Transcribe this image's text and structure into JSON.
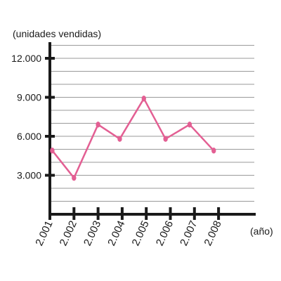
{
  "chart_data": {
    "type": "line",
    "title": "",
    "ylabel": "(unidades vendidas)",
    "xlabel": "(año)",
    "y_ticks": [
      "3.000",
      "6.000",
      "9.000",
      "12.000"
    ],
    "y_tick_values": [
      3000,
      6000,
      9000,
      12000
    ],
    "ylim": [
      0,
      13200
    ],
    "x_categories": [
      "2.001",
      "2.002",
      "2.003",
      "2.004",
      "2.005",
      "2.006",
      "2.007",
      "2.008"
    ],
    "grid": true,
    "grid_step": 1000,
    "series": [
      {
        "color": "#e35f93",
        "points": [
          {
            "x": 2001.1,
            "y": 4900
          },
          {
            "x": 2002.0,
            "y": 2800
          },
          {
            "x": 2003.0,
            "y": 6900
          },
          {
            "x": 2003.9,
            "y": 5800
          },
          {
            "x": 2004.9,
            "y": 8900
          },
          {
            "x": 2005.8,
            "y": 5800
          },
          {
            "x": 2006.8,
            "y": 6900
          },
          {
            "x": 2007.8,
            "y": 4900
          }
        ]
      }
    ]
  }
}
